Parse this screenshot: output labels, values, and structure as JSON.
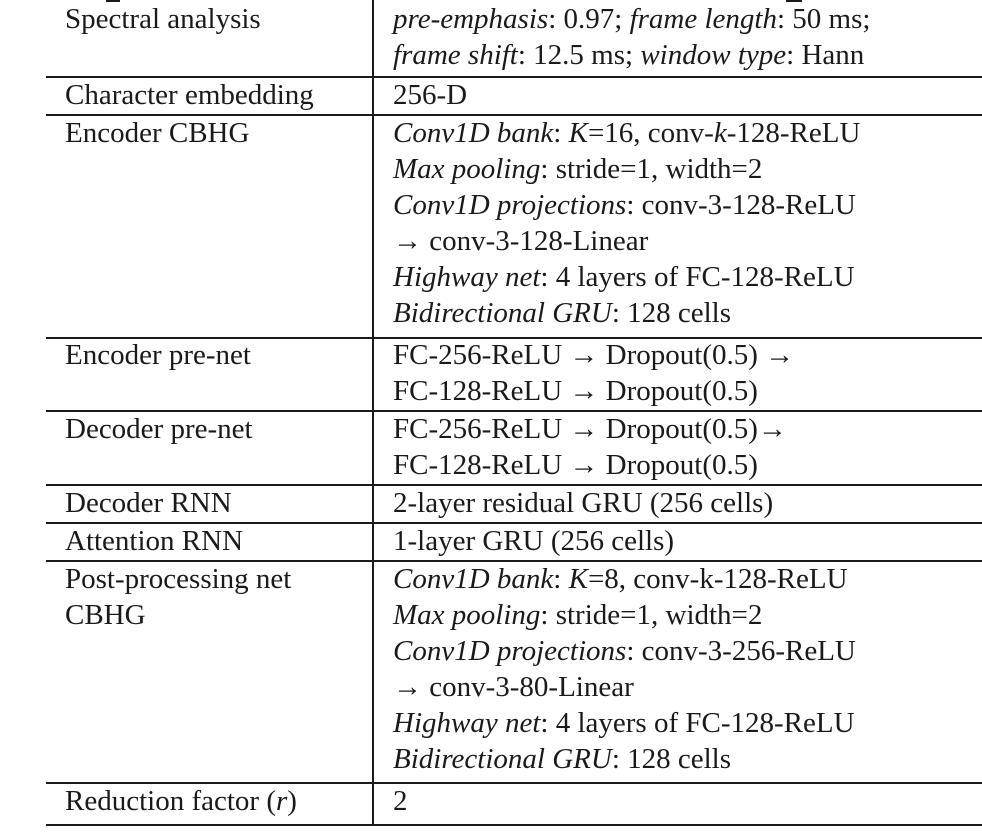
{
  "table": {
    "rows": [
      {
        "label": "Spectral analysis",
        "lines": [
          [
            {
              "t": "pre-emphasis",
              "i": true
            },
            {
              "t": ": 0.97; "
            },
            {
              "t": "frame length",
              "i": true
            },
            {
              "t": ": 50 ms;"
            }
          ],
          [
            {
              "t": "frame shift",
              "i": true
            },
            {
              "t": ": 12.5 ms; "
            },
            {
              "t": "window type",
              "i": true
            },
            {
              "t": ": Hann"
            }
          ]
        ]
      },
      {
        "label": "Character embedding",
        "lines": [
          [
            {
              "t": "256-D"
            }
          ]
        ]
      },
      {
        "label": "Encoder CBHG",
        "lines": [
          [
            {
              "t": "Conv1D bank",
              "i": true
            },
            {
              "t": ": "
            },
            {
              "t": "K",
              "i": true
            },
            {
              "t": "=16, conv-"
            },
            {
              "t": "k",
              "i": true
            },
            {
              "t": "-128-ReLU"
            }
          ],
          [
            {
              "t": "Max pooling",
              "i": true
            },
            {
              "t": ": stride=1, width=2"
            }
          ],
          [
            {
              "t": "Conv1D projections",
              "i": true
            },
            {
              "t": ": conv-3-128-ReLU"
            }
          ],
          [
            {
              "t": "→ conv-3-128-Linear"
            }
          ],
          [
            {
              "t": "Highway net",
              "i": true
            },
            {
              "t": ": 4 layers of FC-128-ReLU"
            }
          ],
          [
            {
              "t": "Bidirectional GRU",
              "i": true
            },
            {
              "t": ": 128 cells"
            }
          ]
        ]
      },
      {
        "label": "Encoder pre-net",
        "lines": [
          [
            {
              "t": "FC-256-ReLU → Dropout(0.5) →"
            }
          ],
          [
            {
              "t": "FC-128-ReLU → Dropout(0.5)"
            }
          ]
        ]
      },
      {
        "label": "Decoder pre-net",
        "lines": [
          [
            {
              "t": "FC-256-ReLU → Dropout(0.5)→"
            }
          ],
          [
            {
              "t": "FC-128-ReLU → Dropout(0.5)"
            }
          ]
        ]
      },
      {
        "label": "Decoder RNN",
        "lines": [
          [
            {
              "t": "2-layer residual GRU (256 cells)"
            }
          ]
        ]
      },
      {
        "label": "Attention RNN",
        "lines": [
          [
            {
              "t": "1-layer GRU (256 cells)"
            }
          ]
        ]
      },
      {
        "label": "Post-processing net\nCBHG",
        "lines": [
          [
            {
              "t": "Conv1D bank",
              "i": true
            },
            {
              "t": ": "
            },
            {
              "t": "K",
              "i": true
            },
            {
              "t": "=8, conv-k-128-ReLU"
            }
          ],
          [
            {
              "t": "Max pooling",
              "i": true
            },
            {
              "t": ": stride=1, width=2"
            }
          ],
          [
            {
              "t": "Conv1D projections",
              "i": true
            },
            {
              "t": ": conv-3-256-ReLU"
            }
          ],
          [
            {
              "t": "→ conv-3-80-Linear"
            }
          ],
          [
            {
              "t": "Highway net",
              "i": true
            },
            {
              "t": ": 4 layers of FC-128-ReLU"
            }
          ],
          [
            {
              "t": "Bidirectional GRU",
              "i": true
            },
            {
              "t": ": 128 cells"
            }
          ]
        ]
      },
      {
        "label": "Reduction factor (r)",
        "lines": [
          [
            {
              "t": "2"
            }
          ]
        ]
      }
    ]
  }
}
